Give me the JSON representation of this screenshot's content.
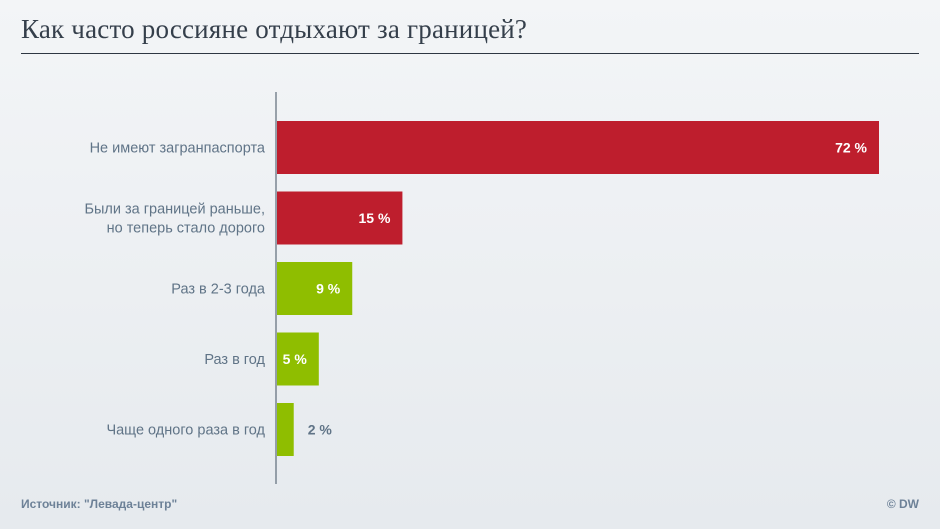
{
  "chart_data": {
    "type": "bar",
    "orientation": "horizontal",
    "title": "Как часто россияне отдыхают за границей?",
    "categories": [
      [
        "Не имеют загранпаспорта"
      ],
      [
        "Были за границей раньше,",
        "но теперь стало дорого"
      ],
      [
        "Раз в 2-3 года"
      ],
      [
        "Раз в год"
      ],
      [
        "Чаще одного раза в год"
      ]
    ],
    "values": [
      72,
      15,
      9,
      5,
      2
    ],
    "value_labels": [
      "72 %",
      "15 %",
      "9 %",
      "5 %",
      "2 %"
    ],
    "bar_colors": [
      "#be1e2d",
      "#be1e2d",
      "#8fbe00",
      "#8fbe00",
      "#8fbe00"
    ],
    "xlim": [
      0,
      72
    ],
    "grid": false,
    "xlabel": "",
    "ylabel": ""
  },
  "colors": {
    "negative": "#be1e2d",
    "positive": "#8fbe00",
    "text": "#607487",
    "value_outside": "#607487",
    "value_inside": "#ffffff",
    "axis": "#5d6b79"
  },
  "footer": {
    "source": "Источник: \"Левада-центр\"",
    "copyright": "© DW"
  }
}
